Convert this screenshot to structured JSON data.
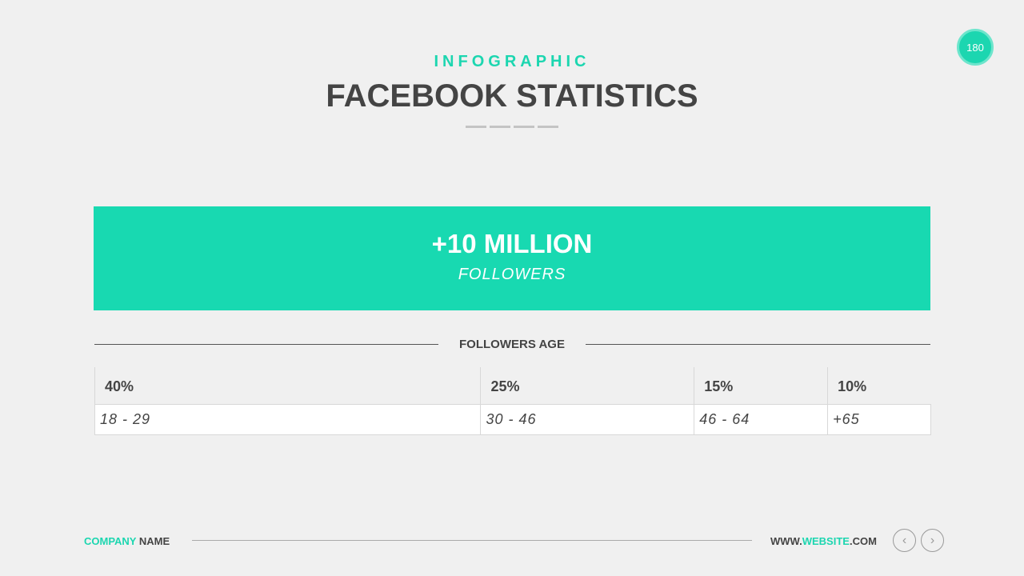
{
  "header": {
    "subtitle": "INFOGRAPHIC",
    "title": "FACEBOOK STATISTICS",
    "page_number": "180"
  },
  "banner": {
    "value": "+10 MILLION",
    "label": "FOLLOWERS",
    "color": "#18d9b1"
  },
  "age_section": {
    "label": "FOLLOWERS AGE",
    "columns": [
      {
        "percent": "40%",
        "range": "18 - 29"
      },
      {
        "percent": "25%",
        "range": "30 - 46"
      },
      {
        "percent": "15%",
        "range": "46 - 64"
      },
      {
        "percent": "10%",
        "range": "+65"
      }
    ]
  },
  "footer": {
    "company_accent": "COMPANY",
    "company_rest": " NAME",
    "web_prefix": "WWW.",
    "web_accent": "WEBSITE",
    "web_suffix": ".COM",
    "prev_icon": "chevron-left-icon",
    "next_icon": "chevron-right-icon"
  }
}
